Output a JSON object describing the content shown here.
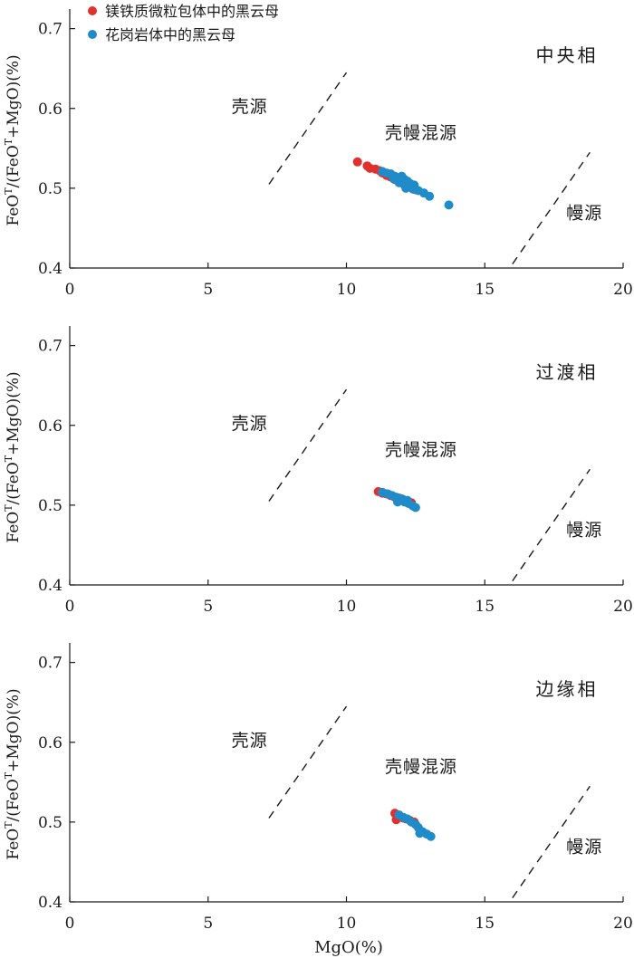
{
  "legend": [
    {
      "label": "镁铁质微粒包体中的黑云母",
      "color": "#e0312c"
    },
    {
      "label": "花岗岩体中的黑云母",
      "color": "#1f8bc9"
    }
  ],
  "ylabel_parts": {
    "fe": "FeO",
    "sup1": "T",
    "mid": "/(FeO",
    "sup2": "T",
    "rest": "+MgO)(%)"
  },
  "chart_data": [
    {
      "type": "scatter",
      "title": "中央相",
      "xlabel": "",
      "xlim": [
        0,
        20
      ],
      "ylim": [
        0.4,
        0.72
      ],
      "xticks": [
        "0",
        "5",
        "10",
        "15",
        "20"
      ],
      "yticks": [
        "0.4",
        "0.5",
        "0.6",
        "0.7"
      ],
      "regions": [
        "壳源",
        "壳幔混源",
        "幔源"
      ],
      "boundaries": [
        {
          "from": [
            7.2,
            0.505
          ],
          "to": [
            10.0,
            0.645
          ]
        },
        {
          "from": [
            16.0,
            0.405
          ],
          "to": [
            18.8,
            0.545
          ]
        }
      ],
      "series": [
        {
          "name": "镁铁质微粒包体中的黑云母",
          "color": "#e0312c",
          "points": [
            [
              10.4,
              0.533
            ],
            [
              10.75,
              0.528
            ],
            [
              10.85,
              0.525
            ],
            [
              11.05,
              0.524
            ],
            [
              11.2,
              0.522
            ],
            [
              11.3,
              0.519
            ],
            [
              11.45,
              0.516
            ],
            [
              11.6,
              0.514
            ],
            [
              11.75,
              0.511
            ],
            [
              11.9,
              0.508
            ],
            [
              12.05,
              0.506
            ],
            [
              12.2,
              0.503
            ],
            [
              12.35,
              0.501
            ],
            [
              12.5,
              0.498
            ]
          ]
        },
        {
          "name": "花岗岩体中的黑云母",
          "color": "#1f8bc9",
          "points": [
            [
              11.3,
              0.521
            ],
            [
              11.45,
              0.519
            ],
            [
              11.6,
              0.518
            ],
            [
              11.75,
              0.515
            ],
            [
              11.85,
              0.513
            ],
            [
              12.0,
              0.515
            ],
            [
              12.1,
              0.511
            ],
            [
              12.2,
              0.509
            ],
            [
              12.3,
              0.506
            ],
            [
              12.45,
              0.504
            ],
            [
              11.9,
              0.507
            ],
            [
              12.1,
              0.504
            ],
            [
              12.25,
              0.502
            ],
            [
              12.4,
              0.499
            ],
            [
              12.6,
              0.497
            ],
            [
              12.8,
              0.494
            ],
            [
              13.0,
              0.49
            ],
            [
              11.7,
              0.512
            ],
            [
              12.0,
              0.509
            ],
            [
              12.15,
              0.5
            ],
            [
              13.7,
              0.479
            ]
          ]
        }
      ]
    },
    {
      "type": "scatter",
      "title": "过渡相",
      "xlabel": "",
      "xlim": [
        0,
        20
      ],
      "ylim": [
        0.4,
        0.72
      ],
      "xticks": [
        "0",
        "5",
        "10",
        "15",
        "20"
      ],
      "yticks": [
        "0.4",
        "0.5",
        "0.6",
        "0.7"
      ],
      "regions": [
        "壳源",
        "壳幔混源",
        "幔源"
      ],
      "boundaries": [
        {
          "from": [
            7.2,
            0.505
          ],
          "to": [
            10.0,
            0.645
          ]
        },
        {
          "from": [
            16.0,
            0.405
          ],
          "to": [
            18.8,
            0.545
          ]
        }
      ],
      "series": [
        {
          "name": "镁铁质微粒包体中的黑云母",
          "color": "#e0312c",
          "points": [
            [
              11.15,
              0.517
            ],
            [
              11.3,
              0.515
            ],
            [
              11.45,
              0.514
            ],
            [
              11.6,
              0.512
            ],
            [
              11.75,
              0.51
            ],
            [
              11.9,
              0.509
            ],
            [
              12.05,
              0.507
            ],
            [
              12.2,
              0.505
            ],
            [
              12.35,
              0.503
            ]
          ]
        },
        {
          "name": "花岗岩体中的黑云母",
          "color": "#1f8bc9",
          "points": [
            [
              11.3,
              0.516
            ],
            [
              11.5,
              0.514
            ],
            [
              11.65,
              0.512
            ],
            [
              11.8,
              0.51
            ],
            [
              11.95,
              0.506
            ],
            [
              12.1,
              0.504
            ],
            [
              12.25,
              0.502
            ],
            [
              12.4,
              0.499
            ],
            [
              12.5,
              0.497
            ],
            [
              12.0,
              0.508
            ],
            [
              12.2,
              0.506
            ],
            [
              11.85,
              0.504
            ]
          ]
        }
      ]
    },
    {
      "type": "scatter",
      "title": "边缘相",
      "xlabel": "MgO(%)",
      "xlim": [
        0,
        20
      ],
      "ylim": [
        0.4,
        0.72
      ],
      "xticks": [
        "0",
        "5",
        "10",
        "15",
        "20"
      ],
      "yticks": [
        "0.4",
        "0.5",
        "0.6",
        "0.7"
      ],
      "regions": [
        "壳源",
        "壳幔混源",
        "幔源"
      ],
      "boundaries": [
        {
          "from": [
            7.2,
            0.505
          ],
          "to": [
            10.0,
            0.645
          ]
        },
        {
          "from": [
            16.0,
            0.405
          ],
          "to": [
            18.8,
            0.545
          ]
        }
      ],
      "series": [
        {
          "name": "镁铁质微粒包体中的黑云母",
          "color": "#e0312c",
          "points": [
            [
              11.75,
              0.511
            ],
            [
              11.85,
              0.508
            ],
            [
              11.95,
              0.507
            ],
            [
              12.05,
              0.505
            ],
            [
              12.15,
              0.504
            ],
            [
              12.3,
              0.502
            ],
            [
              12.45,
              0.5
            ],
            [
              11.8,
              0.503
            ]
          ]
        },
        {
          "name": "花岗岩体中的黑云母",
          "color": "#1f8bc9",
          "points": [
            [
              11.9,
              0.509
            ],
            [
              12.05,
              0.506
            ],
            [
              12.2,
              0.504
            ],
            [
              12.35,
              0.5
            ],
            [
              12.5,
              0.497
            ],
            [
              12.6,
              0.493
            ],
            [
              12.75,
              0.488
            ],
            [
              12.9,
              0.485
            ],
            [
              13.05,
              0.482
            ],
            [
              12.65,
              0.486
            ]
          ]
        }
      ]
    }
  ]
}
